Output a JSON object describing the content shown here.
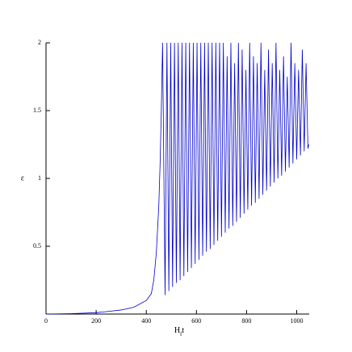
{
  "chart_data": {
    "type": "line",
    "x_label": [
      "H",
      "f",
      "t"
    ],
    "y_label": "ε",
    "x": [
      0,
      100,
      200,
      300,
      350,
      400,
      420,
      430,
      440,
      450,
      455,
      460,
      465,
      475,
      482.5,
      490,
      497.5,
      505,
      512.5,
      520,
      527.5,
      535,
      542.5,
      550,
      557.5,
      565,
      572.5,
      580,
      587.5,
      595,
      602.5,
      610,
      617.5,
      625,
      632.5,
      640,
      647.5,
      655,
      662.5,
      670,
      677.5,
      685,
      692.5,
      700,
      707.5,
      715,
      722.5,
      730,
      737.5,
      745,
      752.5,
      760,
      767.5,
      775,
      782.5,
      790,
      797.5,
      805,
      812.5,
      820,
      827.5,
      835,
      842.5,
      850,
      857.5,
      865,
      872.5,
      880,
      887.5,
      895,
      902.5,
      910,
      917.5,
      925,
      932.5,
      940,
      947.5,
      955,
      962.5,
      970,
      977.5,
      985,
      992.5,
      1000,
      1007.5,
      1015,
      1022.5,
      1030,
      1037.5,
      1045,
      1048
    ],
    "values": [
      0,
      0.003,
      0.01,
      0.03,
      0.05,
      0.1,
      0.15,
      0.25,
      0.45,
      0.8,
      1.1,
      1.5,
      2,
      0.14,
      2,
      0.17,
      2,
      0.2,
      2,
      0.23,
      2,
      0.25,
      2,
      0.28,
      2,
      0.31,
      2,
      0.34,
      2,
      0.37,
      2,
      0.4,
      2,
      0.43,
      2,
      0.46,
      2,
      0.48,
      2,
      0.51,
      2,
      0.54,
      2,
      0.57,
      2,
      0.6,
      1.9,
      0.63,
      2,
      0.65,
      1.85,
      0.68,
      2,
      0.71,
      1.95,
      0.74,
      1.8,
      0.77,
      2,
      0.8,
      1.9,
      0.82,
      1.85,
      0.85,
      2,
      0.88,
      1.8,
      0.91,
      1.95,
      0.94,
      1.85,
      0.97,
      2,
      1.0,
      1.8,
      1.02,
      1.9,
      1.05,
      1.75,
      1.08,
      2,
      1.11,
      1.85,
      1.14,
      1.8,
      1.17,
      1.95,
      1.2,
      1.85,
      1.22,
      1.25
    ],
    "color": "#0000cc",
    "xlim": [
      0,
      1050
    ],
    "xticks": [
      0,
      200,
      400,
      600,
      800,
      1000
    ],
    "ylim": [
      0,
      2
    ],
    "yticks": [
      0.5,
      1,
      1.5,
      2
    ]
  }
}
